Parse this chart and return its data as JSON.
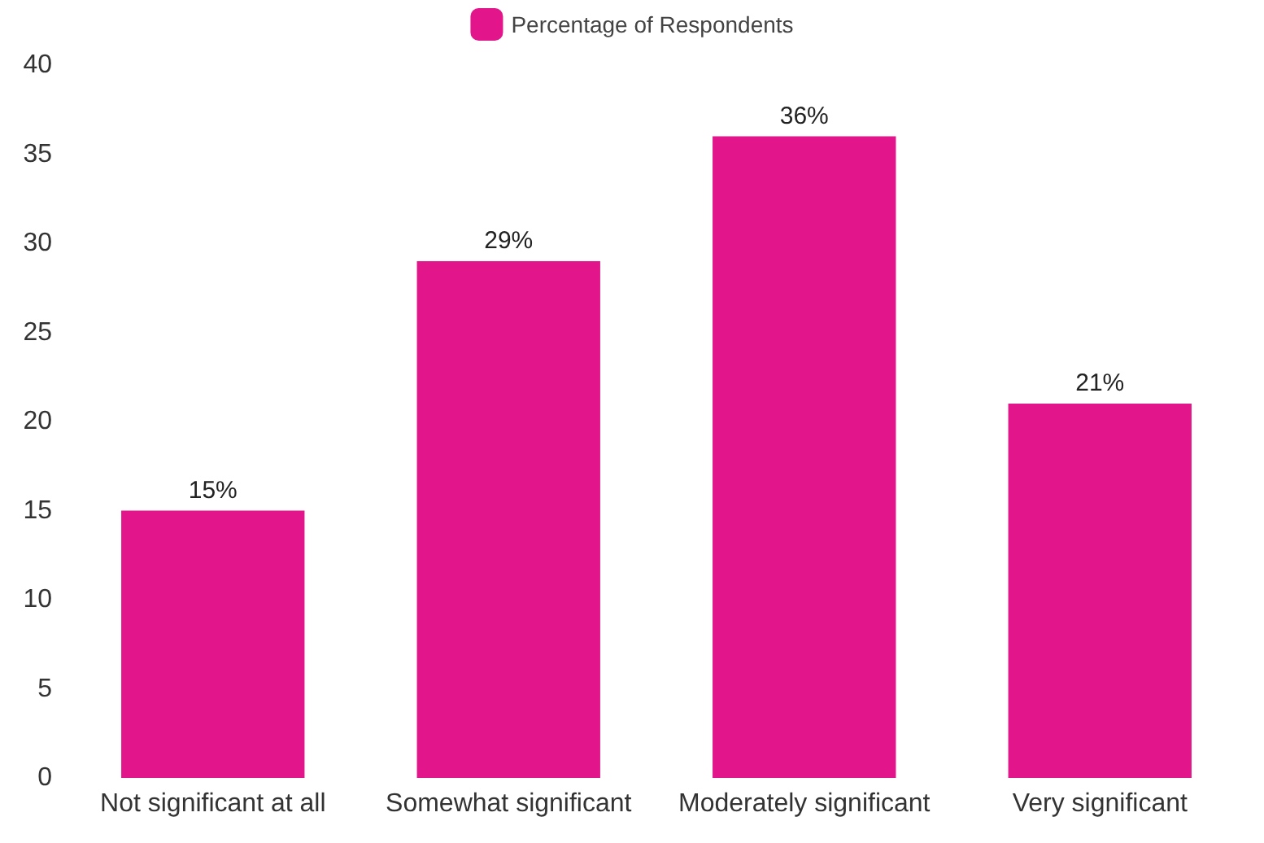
{
  "chart_data": {
    "type": "bar",
    "categories": [
      "Not significant at all",
      "Somewhat significant",
      "Moderately significant",
      "Very significant"
    ],
    "series": [
      {
        "name": "Percentage of Respondents",
        "color": "#e3158b",
        "values": [
          15,
          29,
          36,
          21
        ],
        "value_labels": [
          "15%",
          "29%",
          "36%",
          "21%"
        ]
      }
    ],
    "ylim": [
      0,
      40
    ],
    "yticks": [
      0,
      5,
      10,
      15,
      20,
      25,
      30,
      35,
      40
    ],
    "grid": false,
    "legend": "top"
  }
}
